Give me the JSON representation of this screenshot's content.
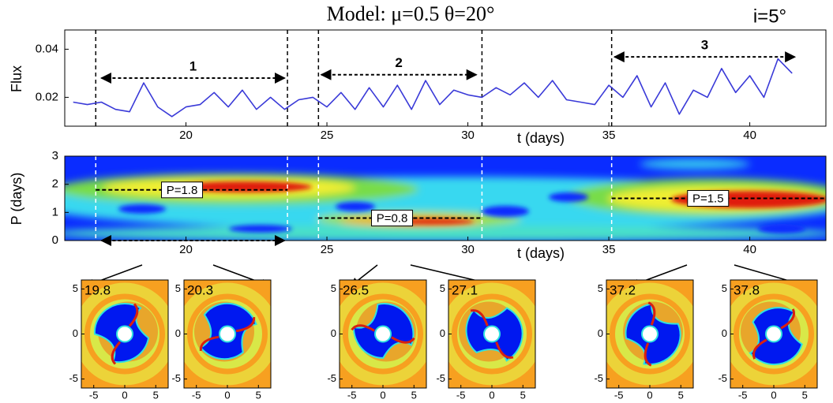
{
  "chart_data": [
    {
      "type": "line",
      "title": "Model: μ=0.5 θ=20°",
      "annotation": "i=5°",
      "ylabel": "Flux",
      "xlabel": "t (days)",
      "xlim": [
        15.7,
        42.7
      ],
      "ylim": [
        0.008,
        0.048
      ],
      "xticks": [
        20,
        25,
        30,
        35,
        40
      ],
      "yticks": [
        0.02,
        0.04
      ],
      "color": "#3a3ad8",
      "x": [
        16,
        16.5,
        17,
        17.5,
        18,
        18.5,
        19,
        19.5,
        20,
        20.5,
        21,
        21.5,
        22,
        22.5,
        23,
        23.5,
        24,
        24.5,
        25,
        25.5,
        26,
        26.5,
        27,
        27.5,
        28,
        28.5,
        29,
        29.5,
        30,
        30.5,
        31,
        31.5,
        32,
        32.5,
        33,
        33.5,
        34,
        34.5,
        35,
        35.5,
        36,
        36.5,
        37,
        37.5,
        38,
        38.5,
        39,
        39.5,
        40,
        40.5,
        41,
        41.5
      ],
      "values": [
        0.018,
        0.017,
        0.018,
        0.015,
        0.014,
        0.026,
        0.016,
        0.012,
        0.016,
        0.017,
        0.022,
        0.016,
        0.023,
        0.015,
        0.02,
        0.015,
        0.019,
        0.02,
        0.016,
        0.022,
        0.015,
        0.024,
        0.016,
        0.025,
        0.015,
        0.027,
        0.017,
        0.023,
        0.021,
        0.02,
        0.024,
        0.021,
        0.026,
        0.02,
        0.027,
        0.019,
        0.018,
        0.017,
        0.025,
        0.02,
        0.029,
        0.016,
        0.026,
        0.013,
        0.023,
        0.02,
        0.032,
        0.022,
        0.029,
        0.02,
        0.036,
        0.03
      ],
      "markers": [
        16.8,
        23.6,
        24.7,
        30.5,
        35.1
      ],
      "arrows": [
        {
          "label": "1",
          "x": [
            17.0,
            23.5
          ],
          "y": 0.028
        },
        {
          "label": "2",
          "x": [
            24.8,
            30.3
          ],
          "y": 0.0294
        },
        {
          "label": "3",
          "x": [
            35.2,
            41.6
          ],
          "y": 0.0368
        }
      ]
    },
    {
      "type": "heatmap",
      "ylabel": "P (days)",
      "xlabel": "t (days)",
      "xlim": [
        15.7,
        42.7
      ],
      "ylim": [
        0,
        3
      ],
      "xticks": [
        20,
        25,
        30,
        35,
        40
      ],
      "yticks": [
        0,
        1,
        2,
        3
      ],
      "markers": [
        16.8,
        23.6,
        24.7,
        30.5,
        35.1
      ],
      "periods": [
        {
          "value": 1.8,
          "label": "P=1.8",
          "x": [
            16.8,
            23.6
          ]
        },
        {
          "value": 0.8,
          "label": "P=0.8",
          "x": [
            24.7,
            30.5
          ]
        },
        {
          "value": 1.5,
          "label": "P=1.5",
          "x": [
            35.1,
            42.7
          ]
        }
      ],
      "arrows": [
        {
          "x": [
            17.0,
            23.5
          ],
          "y": 0
        }
      ]
    },
    {
      "type": "maps",
      "labels": [
        19.8,
        20.3,
        26.5,
        27.1,
        37.2,
        37.8
      ],
      "xlim": [
        -7,
        7
      ],
      "ylim": [
        -6,
        6
      ],
      "xticks": [
        -5,
        0,
        5
      ],
      "yticks": [
        -5,
        0,
        5
      ]
    }
  ]
}
